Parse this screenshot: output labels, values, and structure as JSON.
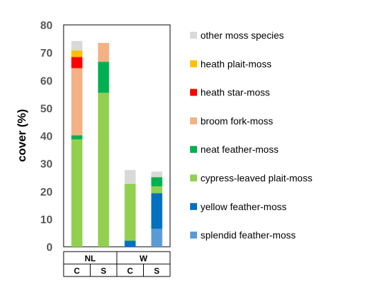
{
  "chart_data": {
    "type": "bar",
    "stacked": true,
    "ylabel": "cover (%)",
    "ylim": [
      0,
      80
    ],
    "yticks": [
      0,
      10,
      20,
      30,
      40,
      50,
      60,
      70,
      80
    ],
    "grid": false,
    "legend_position": "right",
    "groups": [
      {
        "label": "NL",
        "subcategories": [
          "C",
          "S"
        ]
      },
      {
        "label": "W",
        "subcategories": [
          "C",
          "S"
        ]
      }
    ],
    "categories": [
      "NL-C",
      "NL-S",
      "W-C",
      "W-S"
    ],
    "series": [
      {
        "name": "splendid feather-moss",
        "color": "#5B9BD5",
        "values": [
          0,
          0,
          0,
          6.5
        ]
      },
      {
        "name": "yellow feather-moss",
        "color": "#0070C0",
        "values": [
          0,
          0,
          2.2,
          12.8
        ]
      },
      {
        "name": "cypress-leaved plait-moss",
        "color": "#92D050",
        "values": [
          38.7,
          55.5,
          20.5,
          2.5
        ]
      },
      {
        "name": "neat feather-moss",
        "color": "#00B050",
        "values": [
          1.5,
          11.2,
          0,
          3.3
        ]
      },
      {
        "name": "broom fork-moss",
        "color": "#F4B183",
        "values": [
          24.2,
          6.8,
          0,
          0
        ]
      },
      {
        "name": "heath star-moss",
        "color": "#FF0000",
        "values": [
          4.0,
          0,
          0,
          0
        ]
      },
      {
        "name": "heath plait-moss",
        "color": "#FFC000",
        "values": [
          2.4,
          0,
          0,
          0
        ]
      },
      {
        "name": "other moss species",
        "color": "#D9D9D9",
        "values": [
          3.4,
          0,
          5.0,
          2.0
        ]
      }
    ]
  }
}
